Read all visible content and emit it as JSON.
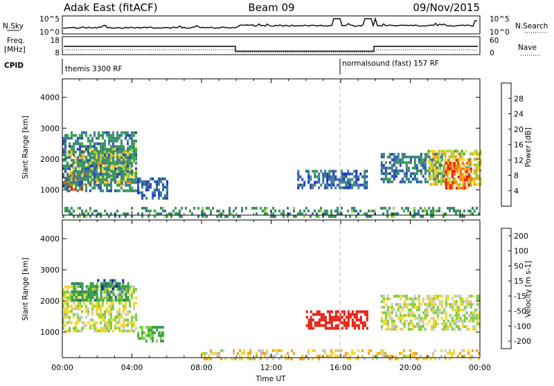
{
  "header": {
    "station_title": "Adak East (fitACF)",
    "beam_label": "Beam 09",
    "date": "09/Nov/2015"
  },
  "nsky_panel": {
    "left_label": "N.Sky",
    "left_ticks": [
      "10^5",
      "10^0"
    ],
    "right_ticks": [
      "10^5",
      "10^0"
    ],
    "right_label": "N.Search"
  },
  "freq_panel": {
    "left_label_1": "Freq.",
    "left_label_2": "[MHz]",
    "left_ticks": [
      "18",
      "8"
    ],
    "right_ticks": [
      "60",
      "0"
    ],
    "right_label": "Nave"
  },
  "cpid_panel": {
    "label": "CPID",
    "mode_1": "themis 3300 RF",
    "mode_2": "normalsound (fast) 157 RF",
    "mode_change_hour": 16
  },
  "colors": {
    "power_scale": [
      "#1a23e6",
      "#2849b8",
      "#3a7a9a",
      "#3c8c70",
      "#3aa24a",
      "#9fd43a",
      "#f2d72a",
      "#f4a020",
      "#f06a15",
      "#e81e10"
    ],
    "velocity_scale": [
      "#e81e10",
      "#f06a15",
      "#f4a020",
      "#f2d72a",
      "#c8c8c8",
      "#7dcf3a",
      "#3aa24a",
      "#2a7a6a",
      "#1a23a0"
    ]
  },
  "chart_data": [
    {
      "type": "heatmap",
      "name": "power",
      "ylabel": "Slant Range [km]",
      "yticks": [
        1000,
        2000,
        3000,
        4000
      ],
      "ylim": [
        180,
        4600
      ],
      "xlim": [
        0,
        24
      ],
      "colorbar_label": "Power [dB]",
      "colorbar_ticks": [
        "4",
        "8",
        "12",
        "16",
        "20",
        "24",
        "28"
      ],
      "colorbar_range": [
        0,
        32
      ],
      "regions": [
        {
          "x0": 0.0,
          "x1": 1.2,
          "y0": 1050,
          "y1": 1600,
          "value": 30
        },
        {
          "x0": 0.3,
          "x1": 4.0,
          "y0": 1200,
          "y1": 2300,
          "value": 22
        },
        {
          "x0": 1.2,
          "x1": 4.3,
          "y0": 1500,
          "y1": 2400,
          "value": 18
        },
        {
          "x0": 0.0,
          "x1": 4.2,
          "y0": 1000,
          "y1": 2900,
          "value": 10
        },
        {
          "x0": 4.3,
          "x1": 6.0,
          "y0": 750,
          "y1": 1400,
          "value": 6
        },
        {
          "x0": 13.5,
          "x1": 17.5,
          "y0": 1100,
          "y1": 1650,
          "value": 7
        },
        {
          "x0": 18.3,
          "x1": 22.0,
          "y0": 1300,
          "y1": 2200,
          "value": 9
        },
        {
          "x0": 21.0,
          "x1": 24.0,
          "y0": 1200,
          "y1": 2300,
          "value": 20
        },
        {
          "x0": 22.0,
          "x1": 23.5,
          "y0": 1100,
          "y1": 2000,
          "value": 27
        },
        {
          "x0": 0.0,
          "x1": 24.0,
          "y0": 180,
          "y1": 450,
          "value": 12
        }
      ]
    },
    {
      "type": "heatmap",
      "name": "velocity",
      "ylabel": "Slant Range [km]",
      "yticks": [
        1000,
        2000,
        3000,
        4000
      ],
      "ylim": [
        180,
        4600
      ],
      "xlim": [
        0,
        24
      ],
      "xticks": [
        "00:00",
        "04:00",
        "08:00",
        "12:00",
        "16:00",
        "20:00",
        "00:00"
      ],
      "xlabel": "Time UT",
      "colorbar_label": "Velocity [m s-1]",
      "colorbar_ticks": [
        "-200",
        "-100",
        "-50",
        "-15",
        "15",
        "50",
        "100",
        "200"
      ],
      "regions": [
        {
          "x0": 0.0,
          "x1": 4.2,
          "y0": 1000,
          "y1": 2500,
          "value": 0
        },
        {
          "x0": 0.5,
          "x1": 3.8,
          "y0": 2000,
          "y1": 2600,
          "value": 60
        },
        {
          "x0": 2.0,
          "x1": 3.5,
          "y0": 2400,
          "y1": 2700,
          "value": 150
        },
        {
          "x0": 4.3,
          "x1": 5.8,
          "y0": 750,
          "y1": 1200,
          "value": 40
        },
        {
          "x0": 14.0,
          "x1": 17.5,
          "y0": 1100,
          "y1": 1700,
          "value": -180
        },
        {
          "x0": 18.3,
          "x1": 24.0,
          "y0": 1100,
          "y1": 2200,
          "value": 0
        },
        {
          "x0": 8.0,
          "x1": 24.0,
          "y0": 180,
          "y1": 450,
          "value": -20
        }
      ]
    }
  ]
}
